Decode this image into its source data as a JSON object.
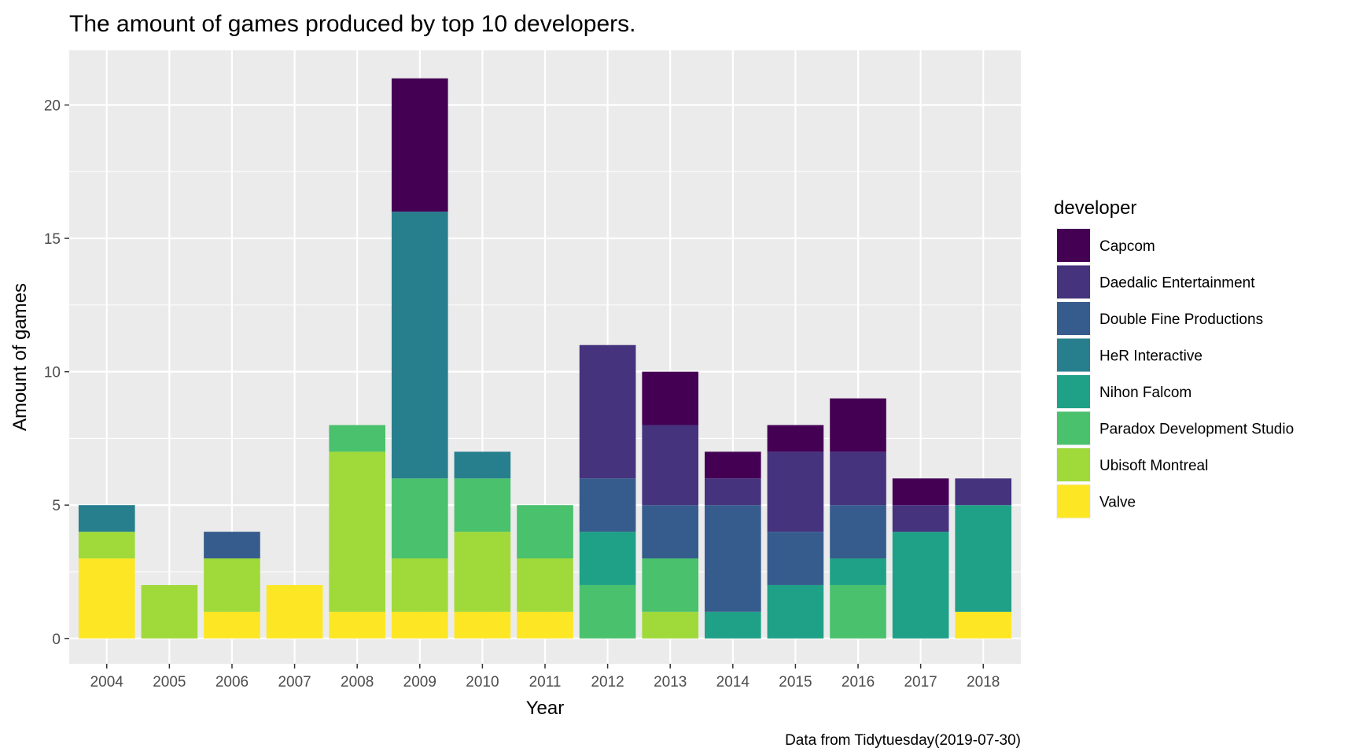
{
  "chart_data": {
    "type": "bar",
    "stacked": true,
    "title": "The amount of games produced by top 10 developers.",
    "xlabel": "Year",
    "ylabel": "Amount of games",
    "caption": "Data from Tidytuesday(2019-07-30)",
    "ylim": [
      -0.95,
      22.05
    ],
    "yticks": [
      0,
      5,
      10,
      15,
      20
    ],
    "grid": true,
    "legend": {
      "title": "developer",
      "position": "right"
    },
    "categories": [
      "2004",
      "2005",
      "2006",
      "2007",
      "2008",
      "2009",
      "2010",
      "2011",
      "2012",
      "2013",
      "2014",
      "2015",
      "2016",
      "2017",
      "2018"
    ],
    "series": [
      {
        "name": "Capcom",
        "color": "#440154",
        "values": [
          0,
          0,
          0,
          0,
          0,
          5,
          0,
          0,
          0,
          2,
          1,
          1,
          2,
          1,
          0
        ]
      },
      {
        "name": "Daedalic Entertainment",
        "color": "#46337E",
        "values": [
          0,
          0,
          0,
          0,
          0,
          0,
          0,
          0,
          5,
          3,
          1,
          3,
          2,
          1,
          1
        ]
      },
      {
        "name": "Double Fine Productions",
        "color": "#365C8D",
        "values": [
          0,
          0,
          1,
          0,
          0,
          0,
          0,
          0,
          2,
          2,
          4,
          2,
          2,
          0,
          0
        ]
      },
      {
        "name": "HeR Interactive",
        "color": "#277F8E",
        "values": [
          1,
          0,
          0,
          0,
          0,
          10,
          1,
          0,
          0,
          0,
          0,
          0,
          0,
          0,
          0
        ]
      },
      {
        "name": "Nihon Falcom",
        "color": "#1FA187",
        "values": [
          0,
          0,
          0,
          0,
          0,
          0,
          0,
          0,
          2,
          0,
          1,
          2,
          1,
          4,
          4
        ]
      },
      {
        "name": "Paradox Development Studio",
        "color": "#4AC16D",
        "values": [
          0,
          0,
          0,
          0,
          1,
          3,
          2,
          2,
          2,
          2,
          0,
          0,
          2,
          0,
          0
        ]
      },
      {
        "name": "Ubisoft Montreal",
        "color": "#9FDA3A",
        "values": [
          1,
          2,
          2,
          0,
          6,
          2,
          3,
          2,
          0,
          1,
          0,
          0,
          0,
          0,
          0
        ]
      },
      {
        "name": "Valve",
        "color": "#FDE725",
        "values": [
          3,
          0,
          1,
          2,
          1,
          1,
          1,
          1,
          0,
          0,
          0,
          0,
          0,
          0,
          1
        ]
      }
    ]
  }
}
